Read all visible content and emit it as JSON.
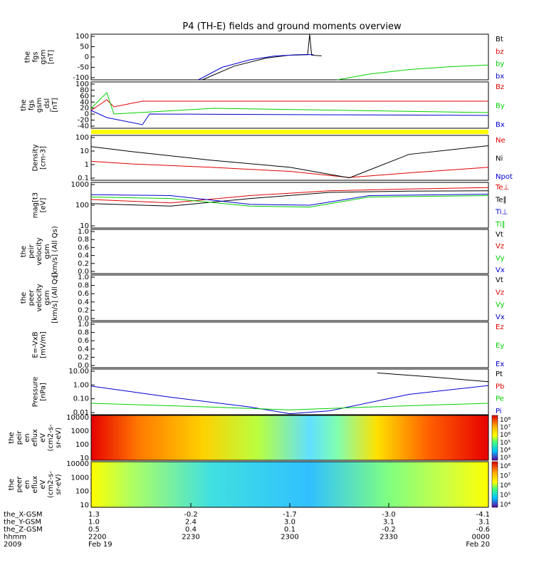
{
  "title": "P4 (TH-E) fields and ground moments overview",
  "colors": {
    "black": "#000000",
    "red": "#e00000",
    "green": "#00d000",
    "blue": "#0000d0",
    "yellow": "#ffff00"
  },
  "panels": [
    {
      "id": "fgs1",
      "ylabel": [
        "the",
        "fgs",
        "gsm",
        "[nT]"
      ],
      "ticks": [
        "100",
        "50",
        "0",
        "-50",
        "-100"
      ],
      "ylim": [
        -100,
        100
      ],
      "legend": [
        {
          "t": "Bt",
          "c": "black"
        },
        {
          "t": "bz",
          "c": "red"
        },
        {
          "t": "by",
          "c": "green"
        },
        {
          "t": "bx",
          "c": "blue"
        }
      ]
    },
    {
      "id": "fgs2",
      "ylabel": [
        "the",
        "fgs",
        "gsm",
        "_dsl",
        "[nT]"
      ],
      "ticks": [
        "100",
        "80",
        "60",
        "40",
        "20",
        "0",
        "-20",
        "-40"
      ],
      "ylim": [
        -50,
        110
      ],
      "legend": [
        {
          "t": "Bz",
          "c": "red"
        },
        {
          "t": "By",
          "c": "green"
        },
        {
          "t": "Bx",
          "c": "blue"
        }
      ]
    },
    {
      "id": "density",
      "ylabel": [
        "Density",
        "[cm-3]"
      ],
      "ticks": [
        "100",
        "10",
        "1",
        "0.1"
      ],
      "log": true,
      "ylim": [
        0.1,
        200
      ],
      "legend": [
        {
          "t": "Ne",
          "c": "red"
        },
        {
          "t": "Ni",
          "c": "black"
        },
        {
          "t": "Npot",
          "c": "blue"
        }
      ]
    },
    {
      "id": "temp",
      "ylabel": [
        "mag[t3",
        "[eV]"
      ],
      "ticks": [
        "1000",
        "100",
        "10"
      ],
      "log": true,
      "ylim": [
        10,
        1200
      ],
      "legend": [
        {
          "t": "Te⊥",
          "c": "red"
        },
        {
          "t": "Te∥",
          "c": "black"
        },
        {
          "t": "Ti⊥",
          "c": "blue"
        },
        {
          "t": "Ti∥",
          "c": "green"
        }
      ]
    },
    {
      "id": "peir",
      "ylabel": [
        "the",
        "peir",
        "velocity",
        "gsm",
        "[km/s] (All Qs)"
      ],
      "ticks": [
        "1.0",
        "0.8",
        "0.6",
        "0.4",
        "0.2",
        "0.0"
      ],
      "ylim": [
        0,
        1
      ],
      "legend": [
        {
          "t": "Vt",
          "c": "black"
        },
        {
          "t": "Vz",
          "c": "red"
        },
        {
          "t": "Vy",
          "c": "green"
        },
        {
          "t": "Vx",
          "c": "blue"
        }
      ]
    },
    {
      "id": "peer",
      "ylabel": [
        "the",
        "peer",
        "velocity",
        "gsm",
        "[km/s] (All Qs)"
      ],
      "ticks": [
        "1.0",
        "0.8",
        "0.6",
        "0.4",
        "0.2",
        "0.0"
      ],
      "ylim": [
        0,
        1
      ],
      "legend": [
        {
          "t": "Vt",
          "c": "black"
        },
        {
          "t": "Vz",
          "c": "red"
        },
        {
          "t": "Vy",
          "c": "green"
        },
        {
          "t": "Vx",
          "c": "blue"
        }
      ]
    },
    {
      "id": "efield",
      "ylabel": [
        "E=-VxB",
        "[mV/m]"
      ],
      "ticks": [
        "1.0",
        "0.8",
        "0.6",
        "0.4",
        "0.2",
        "0.0"
      ],
      "ylim": [
        0,
        1
      ],
      "legend": [
        {
          "t": "Ez",
          "c": "red"
        },
        {
          "t": "Ey",
          "c": "green"
        },
        {
          "t": "Ex",
          "c": "blue"
        }
      ]
    },
    {
      "id": "pressure",
      "ylabel": [
        "Pressure",
        "[nPa]"
      ],
      "ticks": [
        "10.00",
        "1.00",
        "0.10",
        "0.01"
      ],
      "log": true,
      "ylim": [
        0.005,
        20
      ],
      "legend": [
        {
          "t": "Pt",
          "c": "black"
        },
        {
          "t": "Pb",
          "c": "red"
        },
        {
          "t": "Pe",
          "c": "green"
        },
        {
          "t": "Pi",
          "c": "blue"
        }
      ]
    },
    {
      "id": "peir_spec",
      "ylabel": [
        "the",
        "peir",
        "en",
        "eflux",
        "eV",
        "(cm2-s-",
        "sr-eV)"
      ],
      "ticks": [
        "10000",
        "1000",
        "100",
        "10"
      ],
      "cbar": [
        "10⁸",
        "10⁷",
        "10⁶",
        "10⁵",
        "10⁴",
        "10³"
      ]
    },
    {
      "id": "peer_spec",
      "ylabel": [
        "the",
        "peer",
        "en",
        "eflux",
        "eV",
        "(cm2-s-",
        "sr-eV)"
      ],
      "ticks": [
        "10000",
        "1000",
        "100",
        "10"
      ],
      "cbar": [
        "10⁸",
        "10⁷",
        "10⁶",
        "10⁵",
        "10⁴"
      ]
    }
  ],
  "xaxis": {
    "rows": [
      {
        "label": "the_X-GSM",
        "vals": [
          "1.3",
          "-0.2",
          "-1.7",
          "-3.0",
          "-4.1"
        ]
      },
      {
        "label": "the_Y-GSM",
        "vals": [
          "1.0",
          "2.4",
          "3.0",
          "3.1",
          "3.1"
        ]
      },
      {
        "label": "the_Z-GSM",
        "vals": [
          "0.5",
          "0.4",
          "0.1",
          "-0.2",
          "-0.6"
        ]
      },
      {
        "label": "hhmm",
        "vals": [
          "2200",
          "2230",
          "2300",
          "2330",
          "0000"
        ]
      },
      {
        "label": "2009",
        "vals": [
          "Feb 19",
          "",
          "",
          "",
          "Feb 20"
        ]
      }
    ]
  },
  "chart_data": {
    "type": "line",
    "title": "P4 (TH-E) fields and ground moments overview",
    "x_times": [
      "2200",
      "2230",
      "2300",
      "2330",
      "0000"
    ],
    "series": [
      {
        "name": "Bt",
        "panel": "fgs1",
        "t": [
          0.28,
          0.36,
          0.44,
          0.5,
          0.545,
          0.55,
          0.555,
          0.58
        ],
        "values": [
          -100,
          -40,
          -5,
          8,
          10,
          100,
          8,
          5
        ]
      },
      {
        "name": "bx",
        "panel": "fgs1",
        "t": [
          0.27,
          0.33,
          0.4,
          0.46,
          0.52,
          0.545,
          0.56
        ],
        "values": [
          -100,
          -45,
          -12,
          4,
          10,
          11,
          10
        ]
      },
      {
        "name": "by",
        "panel": "fgs1",
        "t": [
          0.62,
          0.7,
          0.8,
          0.9,
          1.0
        ],
        "values": [
          -100,
          -75,
          -55,
          -43,
          -35
        ]
      },
      {
        "name": "Ne",
        "panel": "density",
        "t": [
          0,
          0.1,
          0.3,
          0.5,
          0.65,
          0.8,
          1.0
        ],
        "values": [
          2.5,
          1.6,
          0.9,
          0.45,
          0.16,
          0.35,
          0.9
        ]
      },
      {
        "name": "Ni",
        "panel": "density",
        "t": [
          0,
          0.1,
          0.3,
          0.5,
          0.65,
          0.8,
          1.0
        ],
        "values": [
          30,
          13,
          3,
          0.9,
          0.15,
          8,
          35
        ]
      },
      {
        "name": "Te⊥",
        "panel": "temp",
        "t": [
          0,
          0.2,
          0.4,
          0.6,
          0.8,
          1.0
        ],
        "values": [
          200,
          140,
          300,
          500,
          600,
          700
        ]
      },
      {
        "name": "Te∥",
        "panel": "temp",
        "t": [
          0,
          0.2,
          0.4,
          0.6,
          0.8,
          1.0
        ],
        "values": [
          130,
          100,
          220,
          420,
          480,
          500
        ]
      },
      {
        "name": "Ti⊥",
        "panel": "temp",
        "t": [
          0,
          0.2,
          0.4,
          0.55,
          0.7,
          1.0
        ],
        "values": [
          330,
          300,
          120,
          110,
          300,
          350
        ]
      },
      {
        "name": "Ti∥",
        "panel": "temp",
        "t": [
          0,
          0.2,
          0.4,
          0.55,
          0.7,
          1.0
        ],
        "values": [
          260,
          220,
          100,
          90,
          260,
          300
        ]
      },
      {
        "name": "Pt",
        "panel": "pressure",
        "t": [
          0.72,
          0.85,
          1.0
        ],
        "values": [
          10,
          5,
          2
        ]
      },
      {
        "name": "Pi",
        "panel": "pressure",
        "t": [
          0,
          0.2,
          0.4,
          0.5,
          0.6,
          0.8,
          1.0
        ],
        "values": [
          0.9,
          0.12,
          0.02,
          0.006,
          0.01,
          0.2,
          1.0
        ]
      },
      {
        "name": "Pe",
        "panel": "pressure",
        "t": [
          0,
          0.3,
          0.5,
          0.7,
          1.0
        ],
        "values": [
          0.04,
          0.02,
          0.012,
          0.02,
          0.04
        ]
      }
    ]
  }
}
